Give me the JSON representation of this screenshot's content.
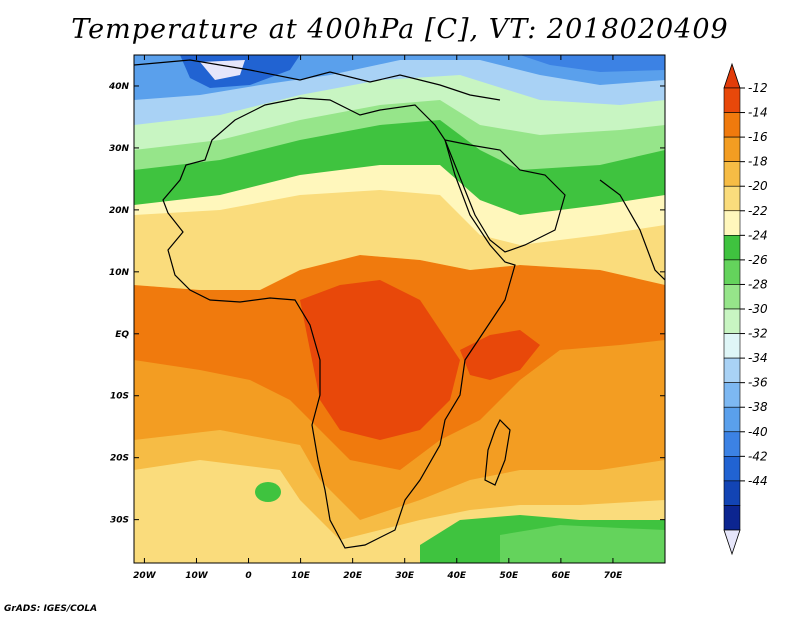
{
  "title": "Temperature at 400hPa [C], VT: 2018020409",
  "credit": "GrADS: IGES/COLA",
  "map": {
    "lon_range": [
      -22,
      80
    ],
    "lat_range": [
      -37,
      45
    ],
    "lon_ticks": [
      {
        "value": -20,
        "label": "20W"
      },
      {
        "value": -10,
        "label": "10W"
      },
      {
        "value": 0,
        "label": "0"
      },
      {
        "value": 10,
        "label": "10E"
      },
      {
        "value": 20,
        "label": "20E"
      },
      {
        "value": 30,
        "label": "30E"
      },
      {
        "value": 40,
        "label": "40E"
      },
      {
        "value": 50,
        "label": "50E"
      },
      {
        "value": 60,
        "label": "60E"
      },
      {
        "value": 70,
        "label": "70E"
      }
    ],
    "lat_ticks": [
      {
        "value": 40,
        "label": "40N"
      },
      {
        "value": 30,
        "label": "30N"
      },
      {
        "value": 20,
        "label": "20N"
      },
      {
        "value": 10,
        "label": "10N"
      },
      {
        "value": 0,
        "label": "EQ"
      },
      {
        "value": -10,
        "label": "10S"
      },
      {
        "value": -20,
        "label": "20S"
      },
      {
        "value": -30,
        "label": "30S"
      }
    ]
  },
  "colorbar": {
    "labels": [
      "-12",
      "-14",
      "-16",
      "-18",
      "-20",
      "-22",
      "-24",
      "-26",
      "-28",
      "-30",
      "-32",
      "-34",
      "-36",
      "-38",
      "-40",
      "-42",
      "-44"
    ],
    "colors": [
      "#e8480a",
      "#f07a0d",
      "#f39d22",
      "#f6bc45",
      "#fadc7c",
      "#fff7bc",
      "#3fc33f",
      "#64d35c",
      "#96e58a",
      "#c8f5c2",
      "#dff6f7",
      "#a9d2f5",
      "#7db8f2",
      "#5aa0ec",
      "#3c82e4",
      "#2163d2",
      "#1244b4",
      "#0c2590"
    ],
    "top_color": "#e23c0a",
    "bottom_color": "#e6e6fa"
  }
}
